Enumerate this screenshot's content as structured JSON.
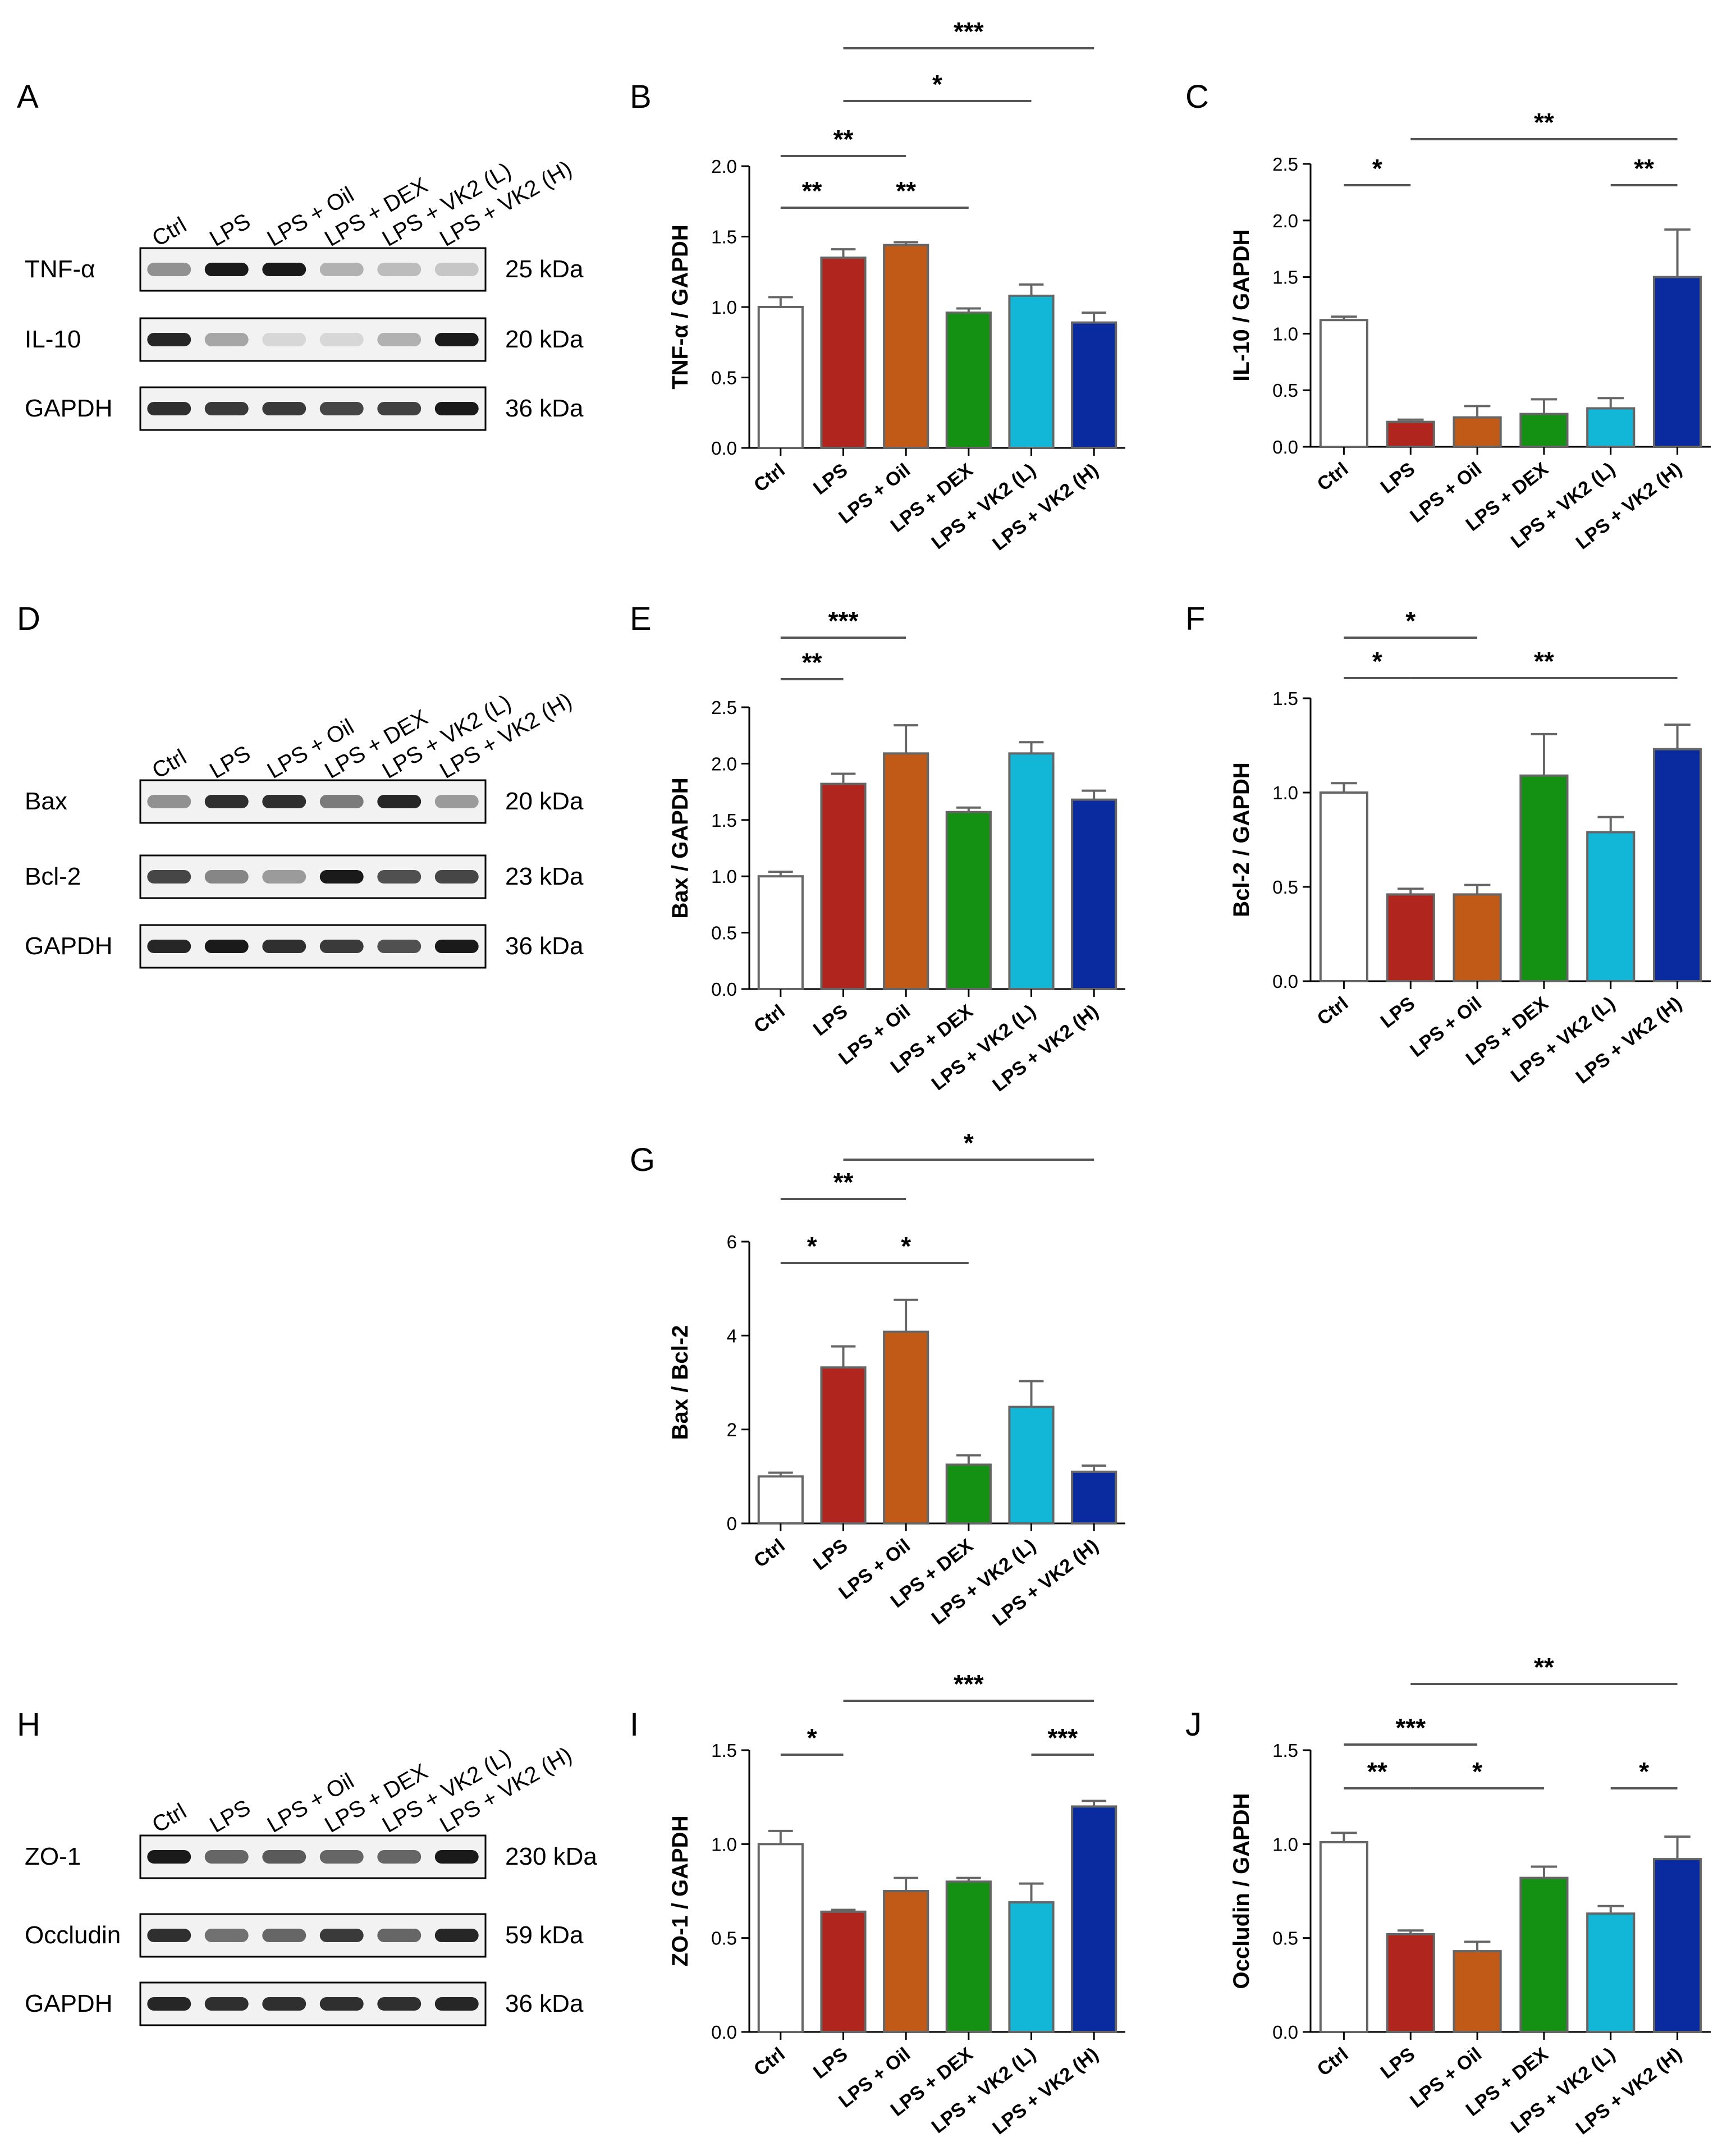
{
  "colors": {
    "Ctrl": "#ffffff",
    "LPS": "#b1251f",
    "LPS + Oil": "#c25a17",
    "LPS + DEX": "#149013",
    "LPS + VK2 (L)": "#12b6d6",
    "LPS + VK2 (H)": "#0a2aa0",
    "bar_border": "#666666",
    "blot_band": "#1a1a1a"
  },
  "blots": [
    {
      "letter": "A",
      "lanes": [
        "Ctrl",
        "LPS",
        "LPS + Oil",
        "LPS + DEX",
        "LPS + VK2 (L)",
        "LPS + VK2 (H)"
      ],
      "rows": [
        {
          "name": "TNF-α",
          "kda": "25 kDa",
          "intensity": [
            0.45,
            1.0,
            1.0,
            0.3,
            0.25,
            0.2
          ]
        },
        {
          "name": "IL-10",
          "kda": "20 kDa",
          "intensity": [
            0.95,
            0.35,
            0.12,
            0.12,
            0.3,
            1.0
          ]
        },
        {
          "name": "GAPDH",
          "kda": "36 kDa",
          "intensity": [
            0.9,
            0.85,
            0.85,
            0.8,
            0.82,
            1.0
          ]
        }
      ]
    },
    {
      "letter": "D",
      "lanes": [
        "Ctrl",
        "LPS",
        "LPS + Oil",
        "LPS + DEX",
        "LPS + VK2 (L)",
        "LPS + VK2 (H)"
      ],
      "rows": [
        {
          "name": "Bax",
          "kda": "20 kDa",
          "intensity": [
            0.45,
            0.9,
            0.9,
            0.55,
            0.95,
            0.4
          ]
        },
        {
          "name": "Bcl-2",
          "kda": "23 kDa",
          "intensity": [
            0.8,
            0.5,
            0.4,
            1.0,
            0.75,
            0.8
          ]
        },
        {
          "name": "GAPDH",
          "kda": "36 kDa",
          "intensity": [
            0.95,
            1.0,
            0.9,
            0.85,
            0.75,
            1.0
          ]
        }
      ]
    },
    {
      "letter": "H",
      "lanes": [
        "Ctrl",
        "LPS",
        "LPS + Oil",
        "LPS + DEX",
        "LPS + VK2 (L)",
        "LPS + VK2 (H)"
      ],
      "rows": [
        {
          "name": "ZO-1",
          "kda": "230 kDa",
          "intensity": [
            1.0,
            0.65,
            0.7,
            0.65,
            0.65,
            1.0
          ]
        },
        {
          "name": "Occludin",
          "kda": "59 kDa",
          "intensity": [
            0.9,
            0.6,
            0.65,
            0.85,
            0.65,
            0.95
          ]
        },
        {
          "name": "GAPDH",
          "kda": "36 kDa",
          "intensity": [
            0.95,
            0.9,
            0.9,
            0.9,
            0.9,
            0.95
          ]
        }
      ]
    }
  ],
  "chart_data": [
    {
      "letter": "B",
      "type": "bar",
      "categories": [
        "Ctrl",
        "LPS",
        "LPS + Oil",
        "LPS + DEX",
        "LPS + VK2 (L)",
        "LPS + VK2 (H)"
      ],
      "values": [
        1.0,
        1.35,
        1.44,
        0.96,
        1.08,
        0.89
      ],
      "errors": [
        0.07,
        0.06,
        0.02,
        0.03,
        0.08,
        0.07
      ],
      "ylabel": "TNF-α / GAPDH",
      "xlabel": "",
      "ylim": [
        0,
        2.0
      ],
      "yticks": [
        "0.0",
        "0.5",
        "1.0",
        "1.5",
        "2.0"
      ],
      "significance": [
        {
          "from": 1,
          "to": 5,
          "label": "***"
        },
        {
          "from": 1,
          "to": 4,
          "label": "*"
        },
        {
          "from": 0,
          "to": 2,
          "label": "**"
        },
        {
          "from": 0,
          "to": 1,
          "label": "**"
        },
        {
          "from": 1,
          "to": 3,
          "label": "**"
        }
      ]
    },
    {
      "letter": "C",
      "type": "bar",
      "categories": [
        "Ctrl",
        "LPS",
        "LPS + Oil",
        "LPS + DEX",
        "LPS + VK2 (L)",
        "LPS + VK2 (H)"
      ],
      "values": [
        1.12,
        0.22,
        0.26,
        0.29,
        0.34,
        1.5
      ],
      "errors": [
        0.03,
        0.02,
        0.1,
        0.13,
        0.09,
        0.42
      ],
      "ylabel": "IL-10 / GAPDH",
      "xlabel": "",
      "ylim": [
        0,
        2.5
      ],
      "yticks": [
        "0.0",
        "0.5",
        "1.0",
        "1.5",
        "2.0",
        "2.5"
      ],
      "significance": [
        {
          "from": 1,
          "to": 5,
          "label": "**"
        },
        {
          "from": 0,
          "to": 1,
          "label": "*"
        },
        {
          "from": 4,
          "to": 5,
          "label": "**"
        }
      ]
    },
    {
      "letter": "E",
      "type": "bar",
      "categories": [
        "Ctrl",
        "LPS",
        "LPS + Oil",
        "LPS + DEX",
        "LPS + VK2 (L)",
        "LPS + VK2 (H)"
      ],
      "values": [
        1.0,
        1.82,
        2.09,
        1.57,
        2.09,
        1.68
      ],
      "errors": [
        0.04,
        0.09,
        0.25,
        0.04,
        0.1,
        0.08
      ],
      "ylabel": "Bax / GAPDH",
      "xlabel": "",
      "ylim": [
        0,
        2.5
      ],
      "yticks": [
        "0.0",
        "0.5",
        "1.0",
        "1.5",
        "2.0",
        "2.5"
      ],
      "significance": [
        {
          "from": 0,
          "to": 2,
          "label": "***"
        },
        {
          "from": 0,
          "to": 1,
          "label": "**"
        }
      ]
    },
    {
      "letter": "F",
      "type": "bar",
      "categories": [
        "Ctrl",
        "LPS",
        "LPS + Oil",
        "LPS + DEX",
        "LPS + VK2 (L)",
        "LPS + VK2 (H)"
      ],
      "values": [
        1.0,
        0.46,
        0.46,
        1.09,
        0.79,
        1.23
      ],
      "errors": [
        0.05,
        0.03,
        0.05,
        0.22,
        0.08,
        0.13
      ],
      "ylabel": "Bcl-2 / GAPDH",
      "xlabel": "",
      "ylim": [
        0,
        1.5
      ],
      "yticks": [
        "0.0",
        "0.5",
        "1.0",
        "1.5"
      ],
      "significance": [
        {
          "from": 0,
          "to": 2,
          "label": "*"
        },
        {
          "from": 0,
          "to": 1,
          "label": "*"
        },
        {
          "from": 1,
          "to": 5,
          "label": "**"
        }
      ]
    },
    {
      "letter": "G",
      "type": "bar",
      "categories": [
        "Ctrl",
        "LPS",
        "LPS + Oil",
        "LPS + DEX",
        "LPS + VK2 (L)",
        "LPS + VK2 (H)"
      ],
      "values": [
        1.0,
        3.32,
        4.08,
        1.25,
        2.48,
        1.1
      ],
      "errors": [
        0.08,
        0.45,
        0.68,
        0.2,
        0.55,
        0.13
      ],
      "ylabel": "Bax / Bcl-2",
      "xlabel": "",
      "ylim": [
        0,
        6
      ],
      "yticks": [
        "0",
        "2",
        "4",
        "6"
      ],
      "significance": [
        {
          "from": 1,
          "to": 5,
          "label": "*"
        },
        {
          "from": 0,
          "to": 2,
          "label": "**"
        },
        {
          "from": 0,
          "to": 1,
          "label": "*"
        },
        {
          "from": 1,
          "to": 3,
          "label": "*"
        }
      ]
    },
    {
      "letter": "I",
      "type": "bar",
      "categories": [
        "Ctrl",
        "LPS",
        "LPS + Oil",
        "LPS + DEX",
        "LPS + VK2 (L)",
        "LPS + VK2 (H)"
      ],
      "values": [
        1.0,
        0.64,
        0.75,
        0.8,
        0.69,
        1.2
      ],
      "errors": [
        0.07,
        0.01,
        0.07,
        0.02,
        0.1,
        0.03
      ],
      "ylabel": "ZO-1 / GAPDH",
      "xlabel": "",
      "ylim": [
        0,
        1.5
      ],
      "yticks": [
        "0.0",
        "0.5",
        "1.0",
        "1.5"
      ],
      "significance": [
        {
          "from": 1,
          "to": 5,
          "label": "***"
        },
        {
          "from": 0,
          "to": 1,
          "label": "*"
        },
        {
          "from": 4,
          "to": 5,
          "label": "***"
        }
      ]
    },
    {
      "letter": "J",
      "type": "bar",
      "categories": [
        "Ctrl",
        "LPS",
        "LPS + Oil",
        "LPS + DEX",
        "LPS + VK2 (L)",
        "LPS + VK2 (H)"
      ],
      "values": [
        1.01,
        0.52,
        0.43,
        0.82,
        0.63,
        0.92
      ],
      "errors": [
        0.05,
        0.02,
        0.05,
        0.06,
        0.04,
        0.12
      ],
      "ylabel": "Occludin / GAPDH",
      "xlabel": "",
      "ylim": [
        0,
        1.5
      ],
      "yticks": [
        "0.0",
        "0.5",
        "1.0",
        "1.5"
      ],
      "significance": [
        {
          "from": 1,
          "to": 5,
          "label": "**"
        },
        {
          "from": 0,
          "to": 2,
          "label": "***"
        },
        {
          "from": 0,
          "to": 1,
          "label": "**"
        },
        {
          "from": 1,
          "to": 3,
          "label": "*"
        },
        {
          "from": 4,
          "to": 5,
          "label": "*"
        }
      ]
    }
  ]
}
